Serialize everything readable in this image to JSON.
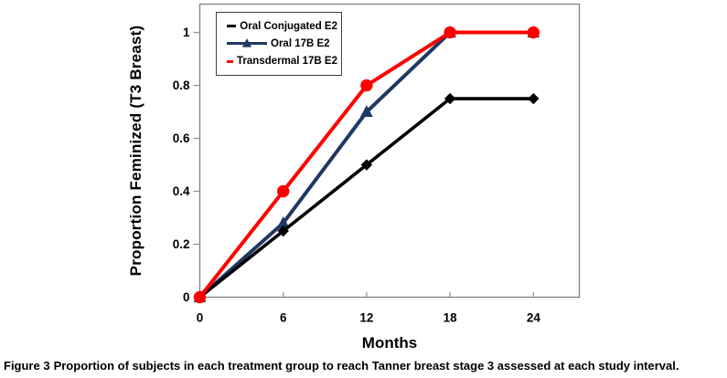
{
  "figure": {
    "caption_prefix": "Figure 3",
    "caption_text": "Proportion of subjects in each treatment group to reach Tanner breast stage 3 assessed at each study interval."
  },
  "chart_data": {
    "type": "line",
    "title": "",
    "xlabel": "Months",
    "ylabel": "Proportion Feminized (T3 Breast)",
    "x": [
      0,
      6,
      12,
      18,
      24
    ],
    "x_tick_labels": [
      "0",
      "6",
      "12",
      "18",
      "24"
    ],
    "y_ticks": [
      0,
      0.2,
      0.4,
      0.6,
      0.8,
      1
    ],
    "y_tick_labels": [
      "0",
      "0.2",
      "0.4",
      "0.6",
      "0.8",
      "1"
    ],
    "xlim": [
      0,
      27.3
    ],
    "ylim": [
      0,
      1.107
    ],
    "grid": false,
    "legend_position": "top-left-inside",
    "series": [
      {
        "name": "Oral Conjugated E2",
        "color": "#000000",
        "marker": "diamond",
        "values": [
          0,
          0.25,
          0.5,
          0.75,
          0.75
        ]
      },
      {
        "name": "Oral 17B E2",
        "color": "#1F3864",
        "marker": "triangle",
        "values": [
          0,
          0.28,
          0.7,
          1.0,
          1.0
        ]
      },
      {
        "name": "Transdermal 17B E2",
        "color": "#FF0000",
        "marker": "circle",
        "values": [
          0,
          0.4,
          0.8,
          1.0,
          1.0
        ]
      }
    ],
    "colors": {
      "axis_frame": "#7F7F7F",
      "tick": "#969696",
      "text": "#000000"
    }
  }
}
